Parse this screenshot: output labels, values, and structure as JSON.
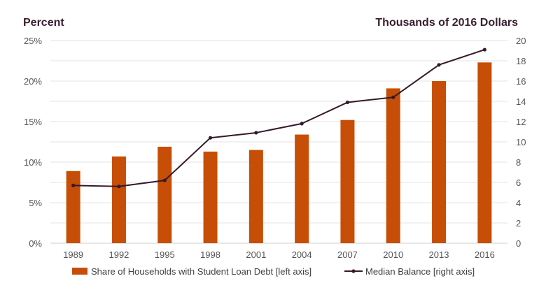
{
  "chart_data": {
    "type": "bar",
    "left_axis_title": "Percent",
    "right_axis_title": "Thousands of 2016 Dollars",
    "categories": [
      "1989",
      "1992",
      "1995",
      "1998",
      "2001",
      "2004",
      "2007",
      "2010",
      "2013",
      "2016"
    ],
    "y_left": {
      "ticks": [
        "0%",
        "5%",
        "10%",
        "15%",
        "20%",
        "25%"
      ],
      "range": [
        0,
        25
      ]
    },
    "y_right": {
      "ticks": [
        "0",
        "2",
        "4",
        "6",
        "8",
        "10",
        "12",
        "14",
        "16",
        "18",
        "20"
      ],
      "range": [
        0,
        20
      ]
    },
    "grid": true,
    "legend_position": "bottom",
    "series": [
      {
        "name": "Share of Households with Student Loan Debt [left axis]",
        "type": "bar",
        "axis": "left",
        "color": "#c74e06",
        "values": [
          8.9,
          10.7,
          11.9,
          11.3,
          11.5,
          13.4,
          15.2,
          19.1,
          20.0,
          22.3
        ]
      },
      {
        "name": "Median Balance [right axis]",
        "type": "line",
        "axis": "right",
        "color": "#35192b",
        "values": [
          5.7,
          5.6,
          6.2,
          10.4,
          10.9,
          11.8,
          13.9,
          14.4,
          17.6,
          19.1
        ]
      }
    ]
  }
}
